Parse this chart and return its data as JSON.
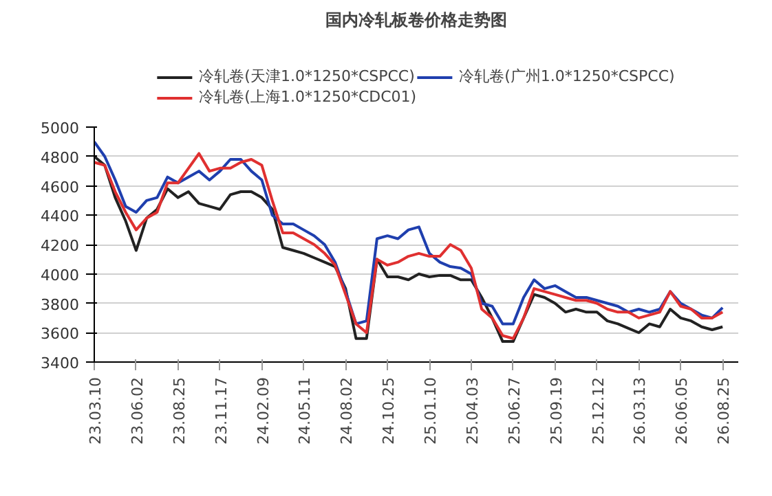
{
  "chart_data": {
    "type": "line",
    "title": "国内冷轧板卷价格走势图",
    "categories": [
      "23.03.10",
      null,
      null,
      null,
      "23.06.02",
      null,
      null,
      null,
      "23.08.25",
      null,
      null,
      null,
      "23.11.17",
      null,
      null,
      null,
      "24.02.09",
      null,
      null,
      null,
      "24.05.11",
      null,
      null,
      null,
      "24.08.02",
      null,
      null,
      null,
      "24.10.25",
      null,
      null,
      null,
      "25.01.10",
      null,
      null,
      null,
      "25.04.03",
      null,
      null,
      null,
      "25.06.27",
      null,
      null,
      null,
      "25.09.19",
      null,
      null,
      null,
      "25.12.12",
      null,
      null,
      null,
      "26.03.13",
      null,
      null,
      null,
      "26.06.05",
      null,
      null,
      null,
      "26.08.25"
    ],
    "series": [
      {
        "name": "冷轧卷(天津1.0*1250*CSPCC)",
        "color": "#222222",
        "values": [
          4800,
          4740,
          4520,
          4360,
          4160,
          4380,
          4440,
          4580,
          4520,
          4560,
          4480,
          4460,
          4440,
          4540,
          4560,
          4560,
          4520,
          4440,
          4180,
          4160,
          4140,
          4110,
          4080,
          4050,
          3900,
          3560,
          3560,
          4100,
          3980,
          3980,
          3960,
          4000,
          3980,
          3990,
          3990,
          3960,
          3960,
          3840,
          3700,
          3540,
          3540,
          3700,
          3860,
          3840,
          3800,
          3740,
          3760,
          3740,
          3740,
          3680,
          3660,
          3630,
          3600,
          3660,
          3640,
          3760,
          3700,
          3680,
          3640,
          3620,
          3640
        ]
      },
      {
        "name": "冷轧卷(广州1.0*1250*CSPCC)",
        "color": "#1f3fae",
        "values": [
          4900,
          4800,
          4640,
          4460,
          4420,
          4500,
          4520,
          4660,
          4620,
          4660,
          4700,
          4640,
          4700,
          4780,
          4780,
          4700,
          4640,
          4400,
          4340,
          4340,
          4300,
          4260,
          4200,
          4080,
          3880,
          3660,
          3680,
          4240,
          4260,
          4240,
          4300,
          4320,
          4140,
          4080,
          4050,
          4040,
          4000,
          3800,
          3780,
          3660,
          3660,
          3840,
          3960,
          3900,
          3920,
          3880,
          3840,
          3840,
          3820,
          3800,
          3780,
          3740,
          3760,
          3740,
          3760,
          3880,
          3800,
          3760,
          3720,
          3700,
          3770
        ]
      },
      {
        "name": "冷轧卷(上海1.0*1250*CDC01)",
        "color": "#e03030",
        "values": [
          4760,
          4740,
          4560,
          4420,
          4300,
          4380,
          4420,
          4620,
          4620,
          4720,
          4820,
          4700,
          4720,
          4720,
          4760,
          4780,
          4740,
          4500,
          4280,
          4280,
          4240,
          4200,
          4140,
          4060,
          3860,
          3660,
          3600,
          4100,
          4060,
          4080,
          4120,
          4140,
          4120,
          4120,
          4200,
          4160,
          4040,
          3760,
          3700,
          3580,
          3560,
          3700,
          3900,
          3880,
          3860,
          3840,
          3820,
          3820,
          3800,
          3760,
          3740,
          3740,
          3700,
          3720,
          3740,
          3880,
          3780,
          3760,
          3700,
          3700,
          3740
        ]
      }
    ],
    "ylim": [
      3400,
      5000
    ],
    "yticks": [
      3400,
      3600,
      3800,
      4000,
      4200,
      4400,
      4600,
      4800,
      5000
    ],
    "grid": "y",
    "legend": "top",
    "marker": "none",
    "line_style": "solid"
  }
}
